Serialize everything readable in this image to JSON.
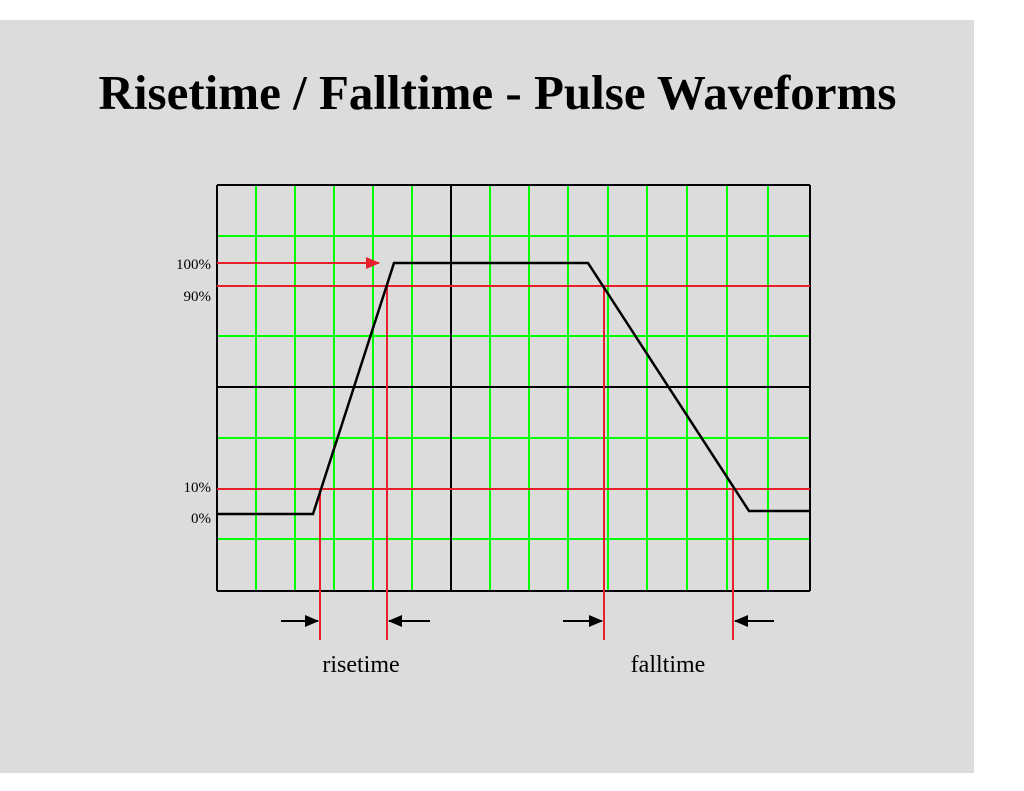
{
  "title": "Risetime / Falltime - Pulse Waveforms",
  "levels": [
    {
      "label": "100%",
      "value": 100
    },
    {
      "label": "90%",
      "value": 90
    },
    {
      "label": "10%",
      "value": 10
    },
    {
      "label": "0%",
      "value": 0
    }
  ],
  "measurements": {
    "risetime": "risetime",
    "falltime": "falltime"
  },
  "colors": {
    "background": "#dcdcdc",
    "grid_minor": "#00ff00",
    "grid_major": "#000000",
    "reference_lines": "#e8202a",
    "waveform": "#000000"
  }
}
